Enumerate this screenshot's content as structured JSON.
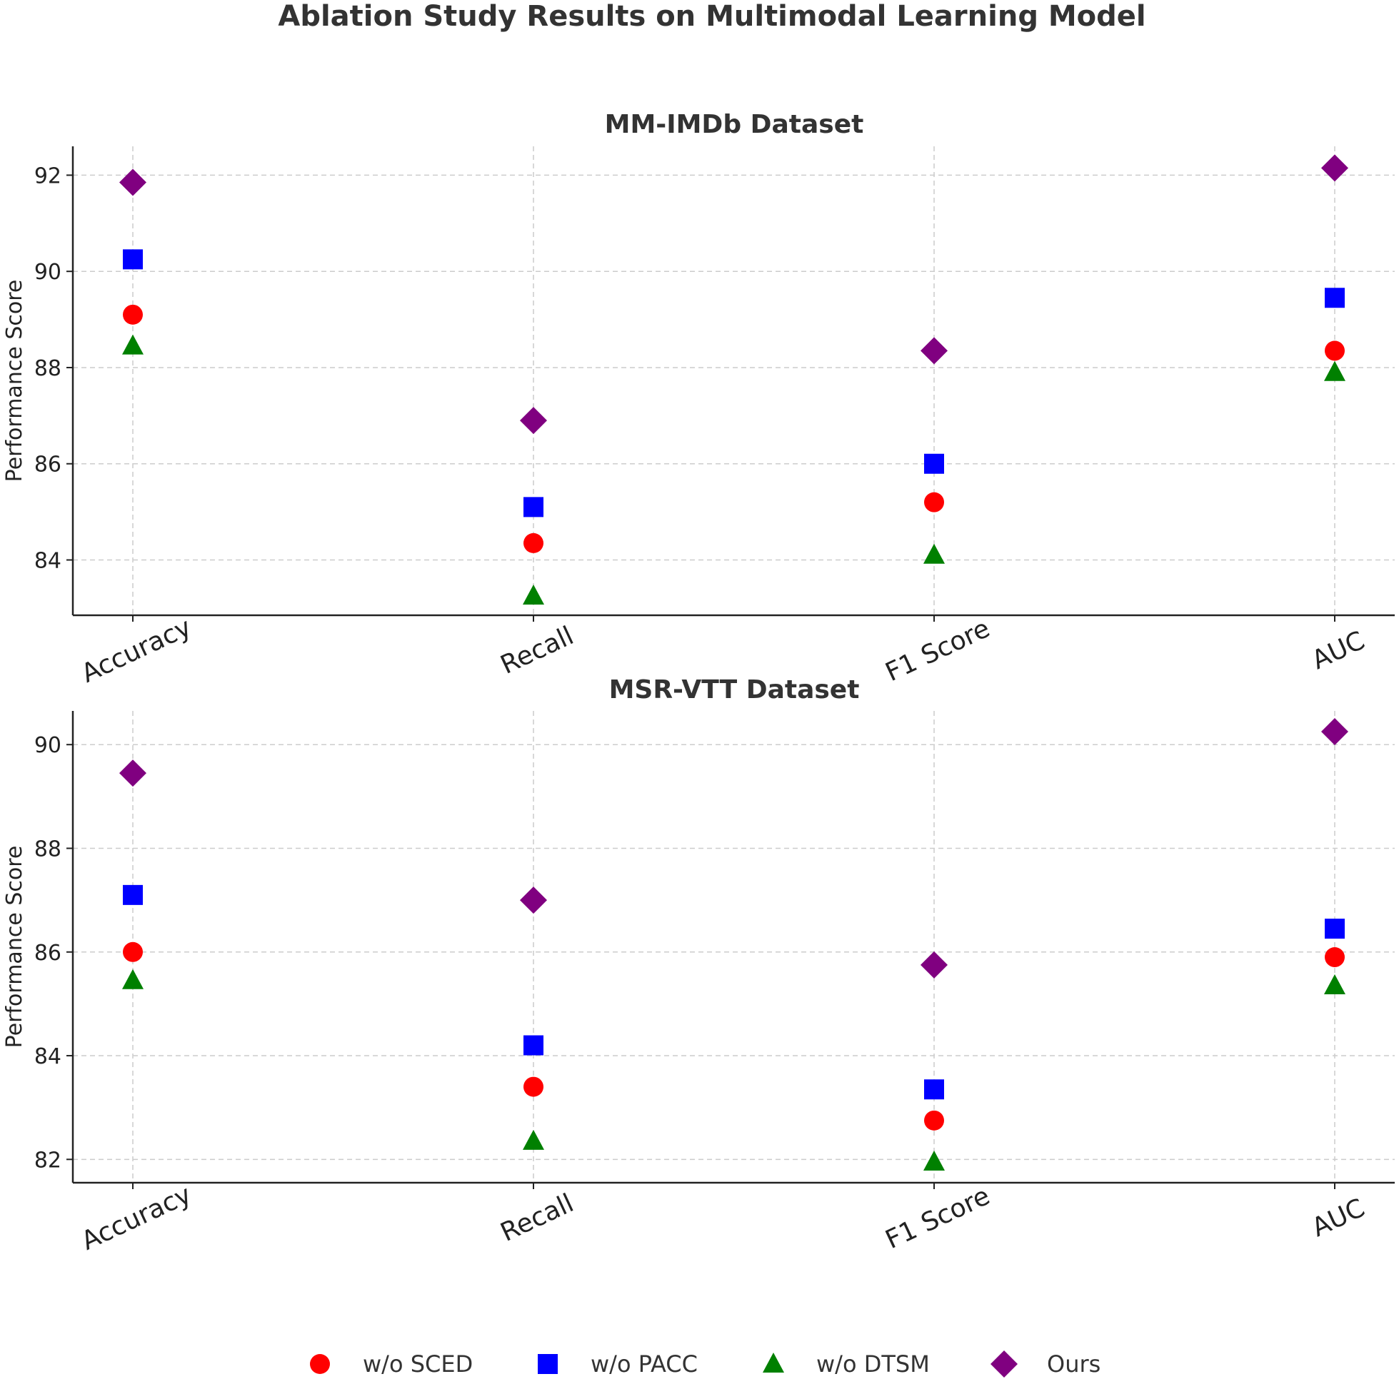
{
  "chart_data": {
    "title": "Ablation Study Results on Multimodal Learning Model",
    "type": "scatter",
    "legend": {
      "placement": "bottom-center",
      "entries": [
        {
          "name": "w/o SCED",
          "marker": "circle",
          "color": "#ff0000"
        },
        {
          "name": "w/o PACC",
          "marker": "square",
          "color": "#0000ff"
        },
        {
          "name": "w/o DTSM",
          "marker": "triangle",
          "color": "#008000"
        },
        {
          "name": "Ours",
          "marker": "diamond",
          "color": "#800080"
        }
      ]
    },
    "subplots": [
      {
        "title": "MM-IMDb Dataset",
        "ylabel": "Performance Score",
        "categories": [
          "Accuracy",
          "Recall",
          "F1 Score",
          "AUC"
        ],
        "ylim": [
          82.85,
          92.6
        ],
        "yticks": [
          84,
          86,
          88,
          90,
          92
        ],
        "grid": true,
        "series": [
          {
            "name": "w/o SCED",
            "values": [
              89.1,
              84.35,
              85.2,
              88.35
            ]
          },
          {
            "name": "w/o PACC",
            "values": [
              90.25,
              85.1,
              86.0,
              89.45
            ]
          },
          {
            "name": "w/o DTSM",
            "values": [
              88.45,
              83.25,
              84.1,
              87.9
            ]
          },
          {
            "name": "Ours",
            "values": [
              91.85,
              86.9,
              88.35,
              92.15
            ]
          }
        ]
      },
      {
        "title": "MSR-VTT Dataset",
        "ylabel": "Performance Score",
        "categories": [
          "Accuracy",
          "Recall",
          "F1 Score",
          "AUC"
        ],
        "ylim": [
          81.55,
          90.65
        ],
        "yticks": [
          82,
          84,
          86,
          88,
          90
        ],
        "grid": true,
        "series": [
          {
            "name": "w/o SCED",
            "values": [
              86.0,
              83.4,
              82.75,
              85.9
            ]
          },
          {
            "name": "w/o PACC",
            "values": [
              87.1,
              84.2,
              83.35,
              86.45
            ]
          },
          {
            "name": "w/o DTSM",
            "values": [
              85.45,
              82.35,
              81.95,
              85.35
            ]
          },
          {
            "name": "Ours",
            "values": [
              89.45,
              87.0,
              85.75,
              90.25
            ]
          }
        ]
      }
    ]
  }
}
